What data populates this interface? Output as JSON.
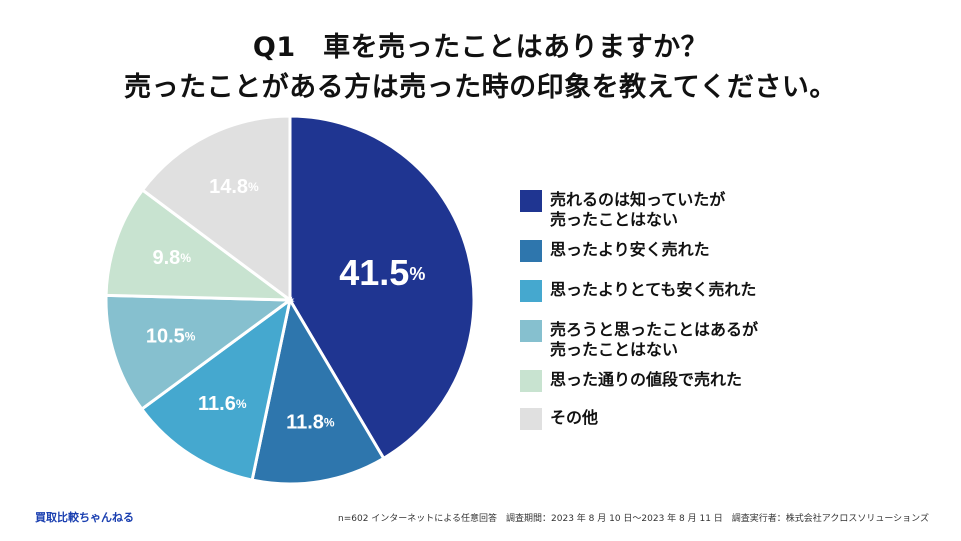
{
  "title": {
    "line1": "Q1　車を売ったことはありますか？",
    "line2": "売ったことがある方は売った時の印象を教えてください。"
  },
  "chart_data": {
    "type": "pie",
    "unit": "%",
    "slices": [
      {
        "label": "売れるのは知っていたが\n売ったことはない",
        "value": 41.5,
        "display": "41.5",
        "color": "#1f3591",
        "label_color": "#ffffff"
      },
      {
        "label": "思ったより安く売れた",
        "value": 11.8,
        "display": "11.8",
        "color": "#2e76ad",
        "label_color": "#ffffff"
      },
      {
        "label": "思ったよりとても安く売れた",
        "value": 11.6,
        "display": "11.6",
        "color": "#45a8cf",
        "label_color": "#ffffff"
      },
      {
        "label": "売ろうと思ったことはあるが\n売ったことはない",
        "value": 10.5,
        "display": "10.5",
        "color": "#86c0cf",
        "label_color": "#ffffff"
      },
      {
        "label": "思った通りの値段で売れた",
        "value": 9.8,
        "display": "9.8",
        "color": "#c8e3d0",
        "label_color": "#ffffff"
      },
      {
        "label": "その他",
        "value": 14.8,
        "display": "14.8",
        "color": "#e0e0e0",
        "label_color": "#ffffff"
      }
    ]
  },
  "footer": {
    "brand": "買取比較ちゃんねる",
    "note": "n=602 インターネットによる任意回答　調査期間：2023 年 8 月 10 日〜2023 年 8 月 11 日　調査実行者：株式会社アクロスソリューションズ"
  }
}
